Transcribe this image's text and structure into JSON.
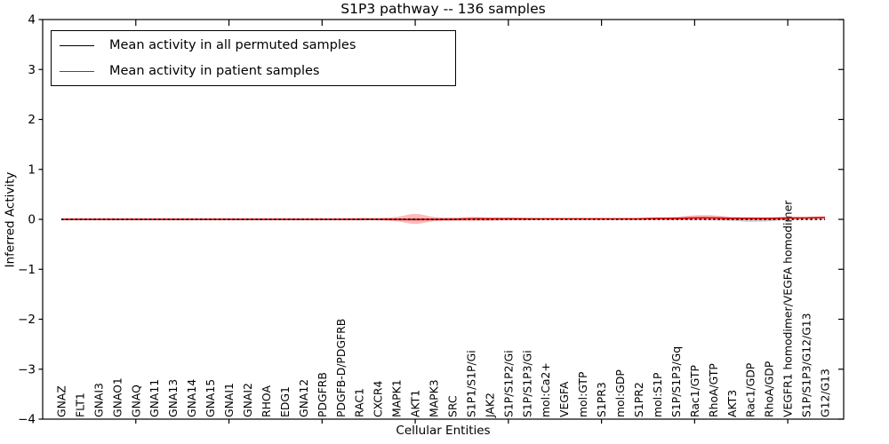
{
  "title": "S1P3 pathway -- 136 samples",
  "axes": {
    "xlabel": "Cellular Entities",
    "ylabel": "Inferred Activity"
  },
  "legend": {
    "items": [
      {
        "label": "Mean activity in all permuted samples",
        "color": "#000000"
      },
      {
        "label": "Mean activity in patient samples",
        "color": "#ff0000"
      }
    ]
  },
  "chart_data": {
    "type": "line",
    "title": "S1P3 pathway -- 136 samples",
    "xlabel": "Cellular Entities",
    "ylabel": "Inferred Activity",
    "ylim": [
      -4,
      4
    ],
    "yticks": [
      4,
      3,
      2,
      1,
      0,
      -1,
      -2,
      -3,
      -4
    ],
    "xtick_positions": [
      5,
      10,
      15,
      20,
      25,
      30,
      35,
      40
    ],
    "grid": false,
    "legend_position": "upper left",
    "categories": [
      "GNAZ",
      "FLT1",
      "GNAI3",
      "GNAO1",
      "GNAQ",
      "GNA11",
      "GNA13",
      "GNA14",
      "GNA15",
      "GNAI1",
      "GNAI2",
      "RHOA",
      "EDG1",
      "GNA12",
      "PDGFRB",
      "PDGFB-D/PDGFRB",
      "RAC1",
      "CXCR4",
      "MAPK1",
      "AKT1",
      "MAPK3",
      "SRC",
      "S1P1/S1P/Gi",
      "JAK2",
      "S1P/S1P2/Gi",
      "S1P/S1P3/Gi",
      "mol:Ca2+",
      "VEGFA",
      "mol:GTP",
      "S1PR3",
      "mol:GDP",
      "S1PR2",
      "mol:S1P",
      "S1P/S1P3/Gq",
      "Rac1/GTP",
      "RhoA/GTP",
      "AKT3",
      "Rac1/GDP",
      "RhoA/GDP",
      "VEGFR1 homodimer/VEGFA homodimer",
      "S1P/S1P3/G12/G13",
      "G12/G13"
    ],
    "series": [
      {
        "name": "Mean activity in all permuted samples",
        "color": "#000000",
        "line_style": "dotted",
        "values": [
          0,
          0,
          0,
          0,
          0,
          0,
          0,
          0,
          0,
          0,
          0,
          0,
          0,
          0,
          0,
          0,
          0,
          0,
          0,
          0,
          0,
          0,
          0,
          0,
          0,
          0,
          0,
          0,
          0,
          0,
          0,
          0,
          0,
          0,
          0,
          0,
          0,
          0,
          0,
          0,
          0,
          0
        ]
      },
      {
        "name": "Mean activity in patient samples",
        "color": "#ff0000",
        "line_style": "solid",
        "values": [
          0,
          0,
          0,
          0,
          0,
          0,
          0,
          0,
          0,
          0,
          0,
          0,
          0,
          0,
          0,
          0,
          0,
          0,
          0,
          0,
          0,
          0,
          0.01,
          0.01,
          0.01,
          0.01,
          0.01,
          0.01,
          0.01,
          0.01,
          0.01,
          0.01,
          0.02,
          0.02,
          0.03,
          0.03,
          0.02,
          0.02,
          0.02,
          0.03,
          0.03,
          0.04
        ]
      }
    ],
    "bands": [
      {
        "name": "permuted-samples-std-band",
        "color": "#999999",
        "opacity": 0.45,
        "upper": [
          0.01,
          0.01,
          0.01,
          0.01,
          0.01,
          0.01,
          0.01,
          0.01,
          0.01,
          0.01,
          0.01,
          0.01,
          0.01,
          0.01,
          0.01,
          0.01,
          0.01,
          0.01,
          0.01,
          0.02,
          0.01,
          0.01,
          0.01,
          0.01,
          0.01,
          0.01,
          0.01,
          0.01,
          0.01,
          0.01,
          0.01,
          0.01,
          0.01,
          0.01,
          0.01,
          0.01,
          0.01,
          0.01,
          0.01,
          0.01,
          0.01,
          0.01
        ],
        "lower": [
          -0.01,
          -0.01,
          -0.01,
          -0.01,
          -0.01,
          -0.01,
          -0.01,
          -0.01,
          -0.01,
          -0.01,
          -0.01,
          -0.01,
          -0.01,
          -0.01,
          -0.01,
          -0.01,
          -0.01,
          -0.01,
          -0.02,
          -0.03,
          -0.02,
          -0.01,
          -0.01,
          -0.01,
          -0.01,
          -0.01,
          -0.01,
          -0.01,
          -0.01,
          -0.01,
          -0.01,
          -0.01,
          -0.01,
          -0.01,
          -0.01,
          -0.02,
          -0.03,
          -0.05,
          -0.04,
          -0.01,
          -0.01,
          -0.01
        ]
      },
      {
        "name": "patient-samples-std-band",
        "color": "#ff0000",
        "opacity": 0.27,
        "upper": [
          0.02,
          0.02,
          0.02,
          0.02,
          0.02,
          0.02,
          0.02,
          0.02,
          0.02,
          0.02,
          0.02,
          0.02,
          0.02,
          0.02,
          0.02,
          0.02,
          0.03,
          0.03,
          0.05,
          0.11,
          0.05,
          0.04,
          0.05,
          0.04,
          0.04,
          0.03,
          0.02,
          0.02,
          0.02,
          0.02,
          0.02,
          0.02,
          0.03,
          0.05,
          0.08,
          0.08,
          0.05,
          0.04,
          0.03,
          0.04,
          0.04,
          0.05
        ],
        "lower": [
          -0.02,
          -0.02,
          -0.02,
          -0.02,
          -0.02,
          -0.02,
          -0.02,
          -0.02,
          -0.02,
          -0.02,
          -0.02,
          -0.02,
          -0.02,
          -0.02,
          -0.02,
          -0.02,
          -0.02,
          -0.02,
          -0.04,
          -0.09,
          -0.04,
          -0.03,
          -0.03,
          -0.03,
          -0.02,
          -0.02,
          -0.01,
          -0.01,
          -0.01,
          -0.01,
          -0.01,
          -0.01,
          -0.01,
          -0.01,
          -0.01,
          -0.01,
          -0.01,
          -0.01,
          -0.01,
          0.0,
          0.01,
          0.01
        ]
      }
    ]
  }
}
